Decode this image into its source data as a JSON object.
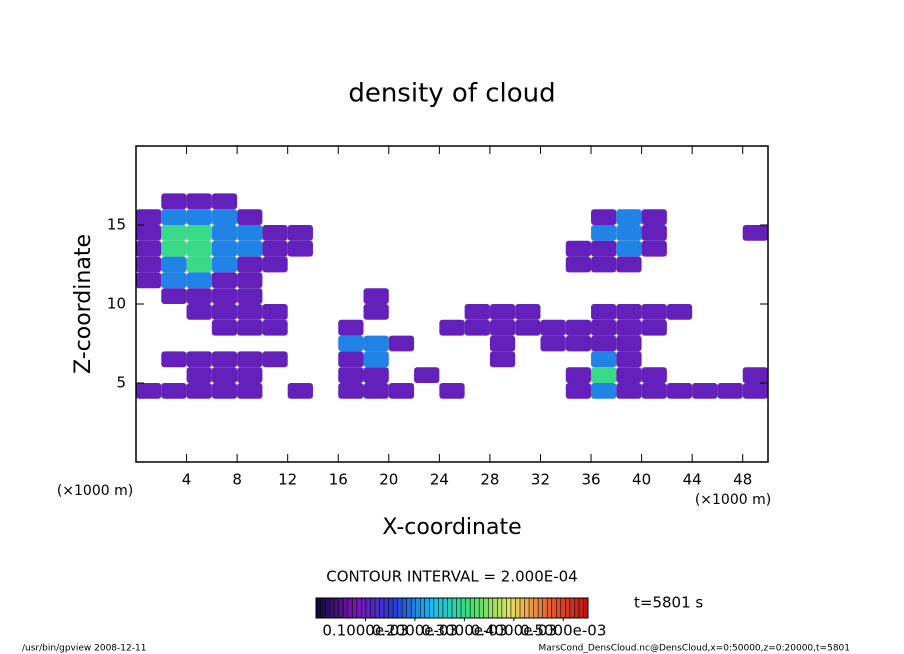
{
  "chart_data": {
    "type": "contour",
    "title": "density of cloud",
    "x_label": "X-coordinate",
    "y_label": "Z-coordinate",
    "x_unit_left": "(×1000 m)",
    "x_unit_right": "(×1000 m)",
    "xlim": [
      0,
      50
    ],
    "ylim": [
      0,
      20
    ],
    "xticks": [
      4,
      8,
      12,
      16,
      20,
      24,
      28,
      32,
      36,
      40,
      44,
      48
    ],
    "yticks": [
      5,
      10,
      15
    ],
    "cell_width": 2,
    "cell_height": 1,
    "x": [
      1,
      3,
      5,
      7,
      9,
      11,
      13,
      15,
      17,
      19,
      21,
      23,
      25,
      27,
      29,
      31,
      33,
      35,
      37,
      39,
      41,
      43,
      45,
      47,
      49
    ],
    "z": [
      16.5,
      15.5,
      14.5,
      13.5,
      12.5,
      11.5,
      10.5,
      9.5,
      8.5,
      7.5,
      6.5,
      5.5,
      4.5
    ],
    "values": [
      [
        null,
        0.0001,
        0.0001,
        0.0001,
        null,
        null,
        null,
        null,
        null,
        null,
        null,
        null,
        null,
        null,
        null,
        null,
        null,
        null,
        null,
        null,
        null,
        null,
        null,
        null,
        null
      ],
      [
        0.0001,
        0.0002,
        0.0002,
        0.0002,
        0.0001,
        null,
        null,
        null,
        null,
        null,
        null,
        null,
        null,
        null,
        null,
        null,
        null,
        null,
        0.0001,
        0.0002,
        0.0001,
        null,
        null,
        null,
        null
      ],
      [
        0.0001,
        0.0003,
        0.0003,
        0.0002,
        0.0002,
        0.0001,
        0.0001,
        null,
        null,
        null,
        null,
        null,
        null,
        null,
        null,
        null,
        null,
        null,
        0.0002,
        0.0002,
        0.0001,
        null,
        null,
        null,
        0.0001
      ],
      [
        0.0001,
        0.0003,
        0.0003,
        0.0002,
        0.0002,
        0.0001,
        0.0001,
        null,
        null,
        null,
        null,
        null,
        null,
        null,
        null,
        null,
        null,
        0.0001,
        0.0001,
        0.0002,
        0.0001,
        null,
        null,
        null,
        null
      ],
      [
        0.0001,
        0.0002,
        0.0003,
        0.0002,
        0.0001,
        0.0001,
        null,
        null,
        null,
        null,
        null,
        null,
        null,
        null,
        null,
        null,
        null,
        0.0001,
        0.0001,
        0.0001,
        null,
        null,
        null,
        null,
        null
      ],
      [
        0.0001,
        0.0002,
        0.0002,
        0.0001,
        0.0001,
        null,
        null,
        null,
        null,
        null,
        null,
        null,
        null,
        null,
        null,
        null,
        null,
        null,
        null,
        null,
        null,
        null,
        null,
        null,
        null
      ],
      [
        null,
        0.0001,
        0.0001,
        0.0001,
        0.0001,
        null,
        null,
        null,
        null,
        0.0001,
        null,
        null,
        null,
        null,
        null,
        null,
        null,
        null,
        null,
        null,
        null,
        null,
        null,
        null,
        null
      ],
      [
        null,
        null,
        0.0001,
        0.0001,
        0.0001,
        0.0001,
        null,
        null,
        null,
        0.0001,
        null,
        null,
        null,
        0.0001,
        0.0001,
        0.0001,
        null,
        null,
        0.0001,
        0.0001,
        0.0001,
        0.0001,
        null,
        null,
        null
      ],
      [
        null,
        null,
        null,
        0.0001,
        0.0001,
        0.0001,
        null,
        null,
        0.0001,
        null,
        null,
        null,
        0.0001,
        0.0001,
        0.0001,
        0.0001,
        0.0001,
        0.0001,
        0.0001,
        0.0001,
        0.0001,
        null,
        null,
        null,
        null
      ],
      [
        null,
        null,
        null,
        null,
        null,
        null,
        null,
        null,
        0.0002,
        0.0002,
        0.0001,
        null,
        null,
        null,
        0.0001,
        null,
        0.0001,
        0.0001,
        0.0001,
        0.0001,
        null,
        null,
        null,
        null,
        null
      ],
      [
        null,
        0.0001,
        0.0001,
        0.0001,
        0.0001,
        0.0001,
        null,
        null,
        0.0001,
        0.0002,
        null,
        null,
        null,
        null,
        0.0001,
        null,
        null,
        null,
        0.0002,
        0.0001,
        null,
        null,
        null,
        null,
        null
      ],
      [
        null,
        null,
        0.0001,
        0.0001,
        0.0001,
        null,
        null,
        null,
        0.0001,
        0.0001,
        null,
        0.0001,
        null,
        null,
        null,
        null,
        null,
        0.0001,
        0.0003,
        0.0001,
        0.0001,
        null,
        null,
        null,
        0.0001
      ],
      [
        0.0001,
        0.0001,
        0.0001,
        0.0001,
        0.0001,
        null,
        0.0001,
        null,
        0.0001,
        0.0001,
        0.0001,
        null,
        0.0001,
        null,
        null,
        null,
        null,
        0.0001,
        0.0002,
        0.0001,
        0.0001,
        0.0001,
        0.0001,
        0.0001,
        0.0001
      ]
    ],
    "clim": [
      0,
      0.00055
    ],
    "colormap": [
      "#0a0a3c",
      "#7a16b0",
      "#2a3ad8",
      "#18c0f0",
      "#40e070",
      "#e8e060",
      "#e86030",
      "#c01010"
    ],
    "colorbar_ticks": [
      {
        "value": 0.0001,
        "label": "0.1000e-03"
      },
      {
        "value": 0.0002,
        "label": "0.2000e-03"
      },
      {
        "value": 0.0003,
        "label": "0.3000e-03"
      },
      {
        "value": 0.0004,
        "label": "0.4000e-03"
      },
      {
        "value": 0.0005,
        "label": "0.5000e-03"
      }
    ],
    "contour_interval": "CONTOUR INTERVAL = 2.000E-04",
    "time_label": "t=5801 s",
    "footer_left": "/usr/bin/gpview   2008-12-11",
    "footer_right": "MarsCond_DensCloud.nc@DensCloud,x=0:50000,z=0:20000,t=5801"
  }
}
